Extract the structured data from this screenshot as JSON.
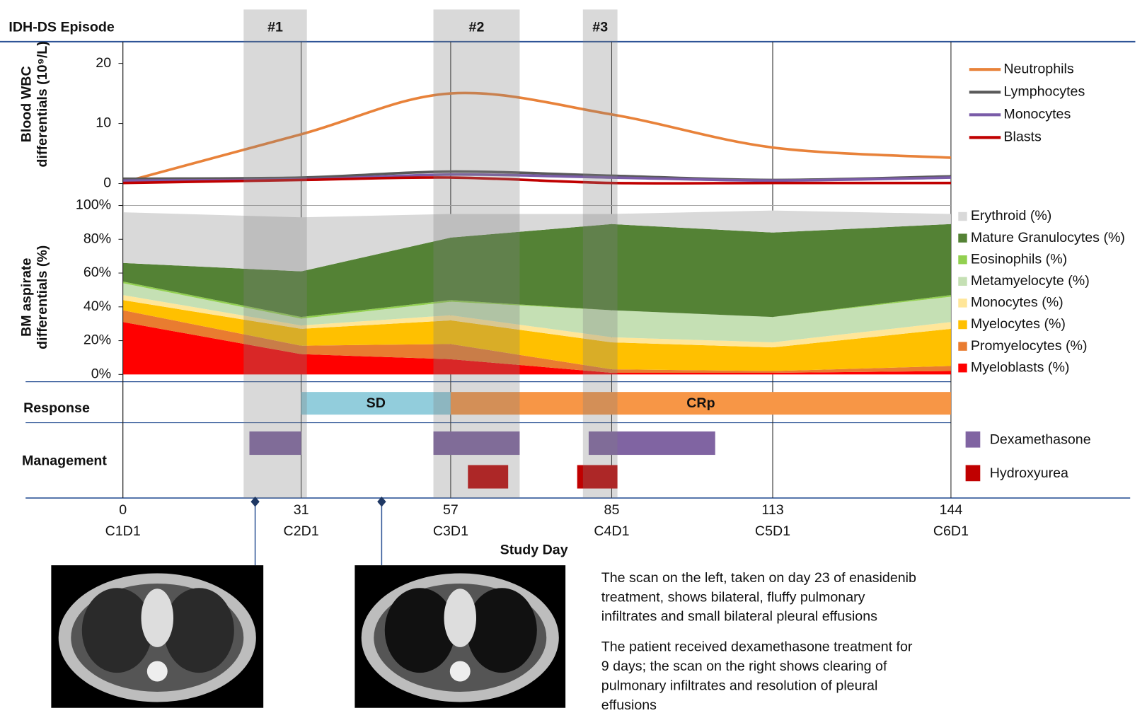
{
  "timeline": {
    "xlim": [
      0,
      144
    ],
    "xticks": [
      0,
      31,
      57,
      85,
      113,
      144
    ],
    "cycles": [
      "C1D1",
      "C2D1",
      "C3D1",
      "C4D1",
      "C5D1",
      "C6D1"
    ],
    "x_label": "Study Day"
  },
  "episodes": {
    "title": "IDH-DS Episode",
    "items": [
      {
        "label": "#1",
        "start": 21,
        "end": 32
      },
      {
        "label": "#2",
        "start": 54,
        "end": 69
      },
      {
        "label": "#3",
        "start": 80,
        "end": 86
      }
    ]
  },
  "chart_data": [
    {
      "type": "line",
      "y_label": [
        "Blood WBC",
        "differentials (10⁹/L)"
      ],
      "x": [
        0,
        31,
        57,
        85,
        113,
        144
      ],
      "ylim": [
        0,
        23
      ],
      "yticks": [
        0,
        10,
        20
      ],
      "series": [
        {
          "name": "Neutrophils",
          "color": "#e8823a",
          "values": [
            0.2,
            8.2,
            15,
            11.5,
            6,
            4.3
          ]
        },
        {
          "name": "Lymphocytes",
          "color": "#595959",
          "values": [
            0.8,
            1.0,
            2.0,
            1.3,
            0.6,
            1.2
          ]
        },
        {
          "name": "Monocytes",
          "color": "#7a5ca8",
          "values": [
            0.5,
            0.7,
            1.5,
            1.0,
            0.5,
            1.0
          ]
        },
        {
          "name": "Blasts",
          "color": "#c00000",
          "values": [
            0.1,
            0.6,
            1.0,
            0.1,
            0.1,
            0.1
          ]
        }
      ]
    },
    {
      "type": "stacked_area",
      "y_label": [
        "BM aspirate",
        "differentials (%)"
      ],
      "x": [
        0,
        31,
        57,
        85,
        113,
        144
      ],
      "ylim": [
        0,
        100
      ],
      "yticks": [
        {
          "value": 0,
          "label": "0%"
        },
        {
          "value": 20,
          "label": "20%"
        },
        {
          "value": 40,
          "label": "40%"
        },
        {
          "value": 60,
          "label": "60%"
        },
        {
          "value": 80,
          "label": "80%"
        },
        {
          "value": 100,
          "label": "100%"
        }
      ],
      "series": [
        {
          "name": "Myeloblasts (%)",
          "color": "#ff0000",
          "values": [
            31,
            12,
            9,
            1,
            1,
            2
          ]
        },
        {
          "name": "Promyelocytes (%)",
          "color": "#e97c30",
          "values": [
            7,
            5,
            9,
            2,
            1,
            3
          ]
        },
        {
          "name": "Myelocytes (%)",
          "color": "#ffc000",
          "values": [
            6,
            10,
            14,
            16,
            14,
            22
          ]
        },
        {
          "name": "Monocytes (%)",
          "color": "#ffe699",
          "values": [
            3,
            2,
            3,
            3,
            3,
            4
          ]
        },
        {
          "name": "Metamyelocyte (%)",
          "color": "#c5e0b4",
          "values": [
            7,
            4,
            8,
            16,
            15,
            15
          ]
        },
        {
          "name": "Eosinophils (%)",
          "color": "#92d050",
          "values": [
            1,
            1,
            1,
            0,
            0,
            1
          ]
        },
        {
          "name": "Mature Granulocytes (%)",
          "color": "#548235",
          "values": [
            11,
            27,
            37,
            51,
            50,
            42
          ]
        },
        {
          "name": "Erythroid (%)",
          "color": "#d9d9d9",
          "values": [
            30,
            32,
            14,
            6,
            13,
            6
          ]
        }
      ]
    }
  ],
  "response": {
    "title": "Response",
    "phases": [
      {
        "label": "SD",
        "start": 31,
        "end": 57,
        "color": "#92cddc"
      },
      {
        "label": "CRp",
        "start": 57,
        "end": 144,
        "color": "#f79646"
      }
    ]
  },
  "management": {
    "title": "Management",
    "series": [
      {
        "name": "Dexamethasone",
        "color": "#8064a2",
        "periods": [
          [
            22,
            31
          ],
          [
            54,
            69
          ],
          [
            81,
            103
          ]
        ]
      },
      {
        "name": "Hydroxyurea",
        "color": "#c00000",
        "periods": [
          [
            60,
            67
          ],
          [
            79,
            86
          ]
        ]
      }
    ]
  },
  "scans": {
    "days": [
      23,
      45
    ]
  },
  "notes": [
    [
      "The scan on the left, taken on day 23 of enasidenib",
      "treatment, shows bilateral, fluffy pulmonary",
      "infiltrates and small bilateral pleural effusions"
    ],
    [
      "The patient received dexamethasone treatment for",
      "9 days; the scan on the right shows clearing of",
      "pulmonary infiltrates and resolution of pleural",
      "effusions"
    ]
  ]
}
